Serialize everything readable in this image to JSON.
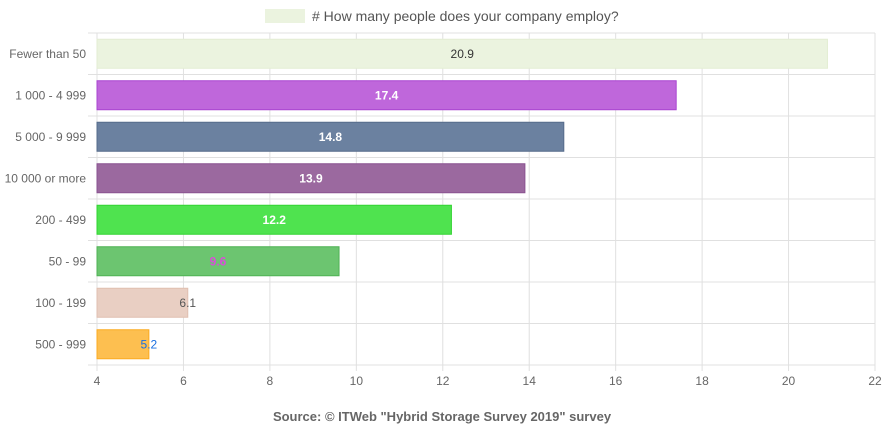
{
  "chart_data": {
    "type": "bar",
    "orientation": "horizontal",
    "legend": {
      "label": "# How many people does your company employ?",
      "color": "#ebf3df",
      "placement": "top"
    },
    "categories": [
      "Fewer than 50",
      "1 000 - 4 999",
      "5 000 - 9 999",
      "10 000 or more",
      "200 - 499",
      "50 - 99",
      "100 - 199",
      "500 - 999"
    ],
    "values": [
      20.9,
      17.4,
      14.8,
      13.9,
      12.2,
      9.6,
      6.1,
      5.2
    ],
    "data_labels": [
      "20.9",
      "17.4",
      "14.8",
      "13.9",
      "12.2",
      "9.6",
      "6.1",
      "5.2"
    ],
    "colors": [
      "#ebf3df",
      "#bf67db",
      "#6b81a0",
      "#9b699f",
      "#4fe34f",
      "#6cc570",
      "#e9cfc3",
      "#fdbf50"
    ],
    "border_colors": [
      "#e3edd3",
      "#a944d0",
      "#566c8b",
      "#8a5290",
      "#32d332",
      "#4fb254",
      "#e0bfb0",
      "#fcab20"
    ],
    "label_colors": [
      "#333333",
      "#ffffff",
      "#ffffff",
      "#ffffff",
      "#ffffff",
      "#d94ed9",
      "#555555",
      "#1a6fe0"
    ],
    "xlim": [
      4,
      22
    ],
    "x_ticks": [
      "4",
      "6",
      "8",
      "10",
      "12",
      "14",
      "16",
      "18",
      "20",
      "22"
    ],
    "grid": true,
    "xlabel": "",
    "ylabel": "",
    "footer": "Source: © ITWeb \"Hybrid Storage Survey 2019\" survey"
  }
}
